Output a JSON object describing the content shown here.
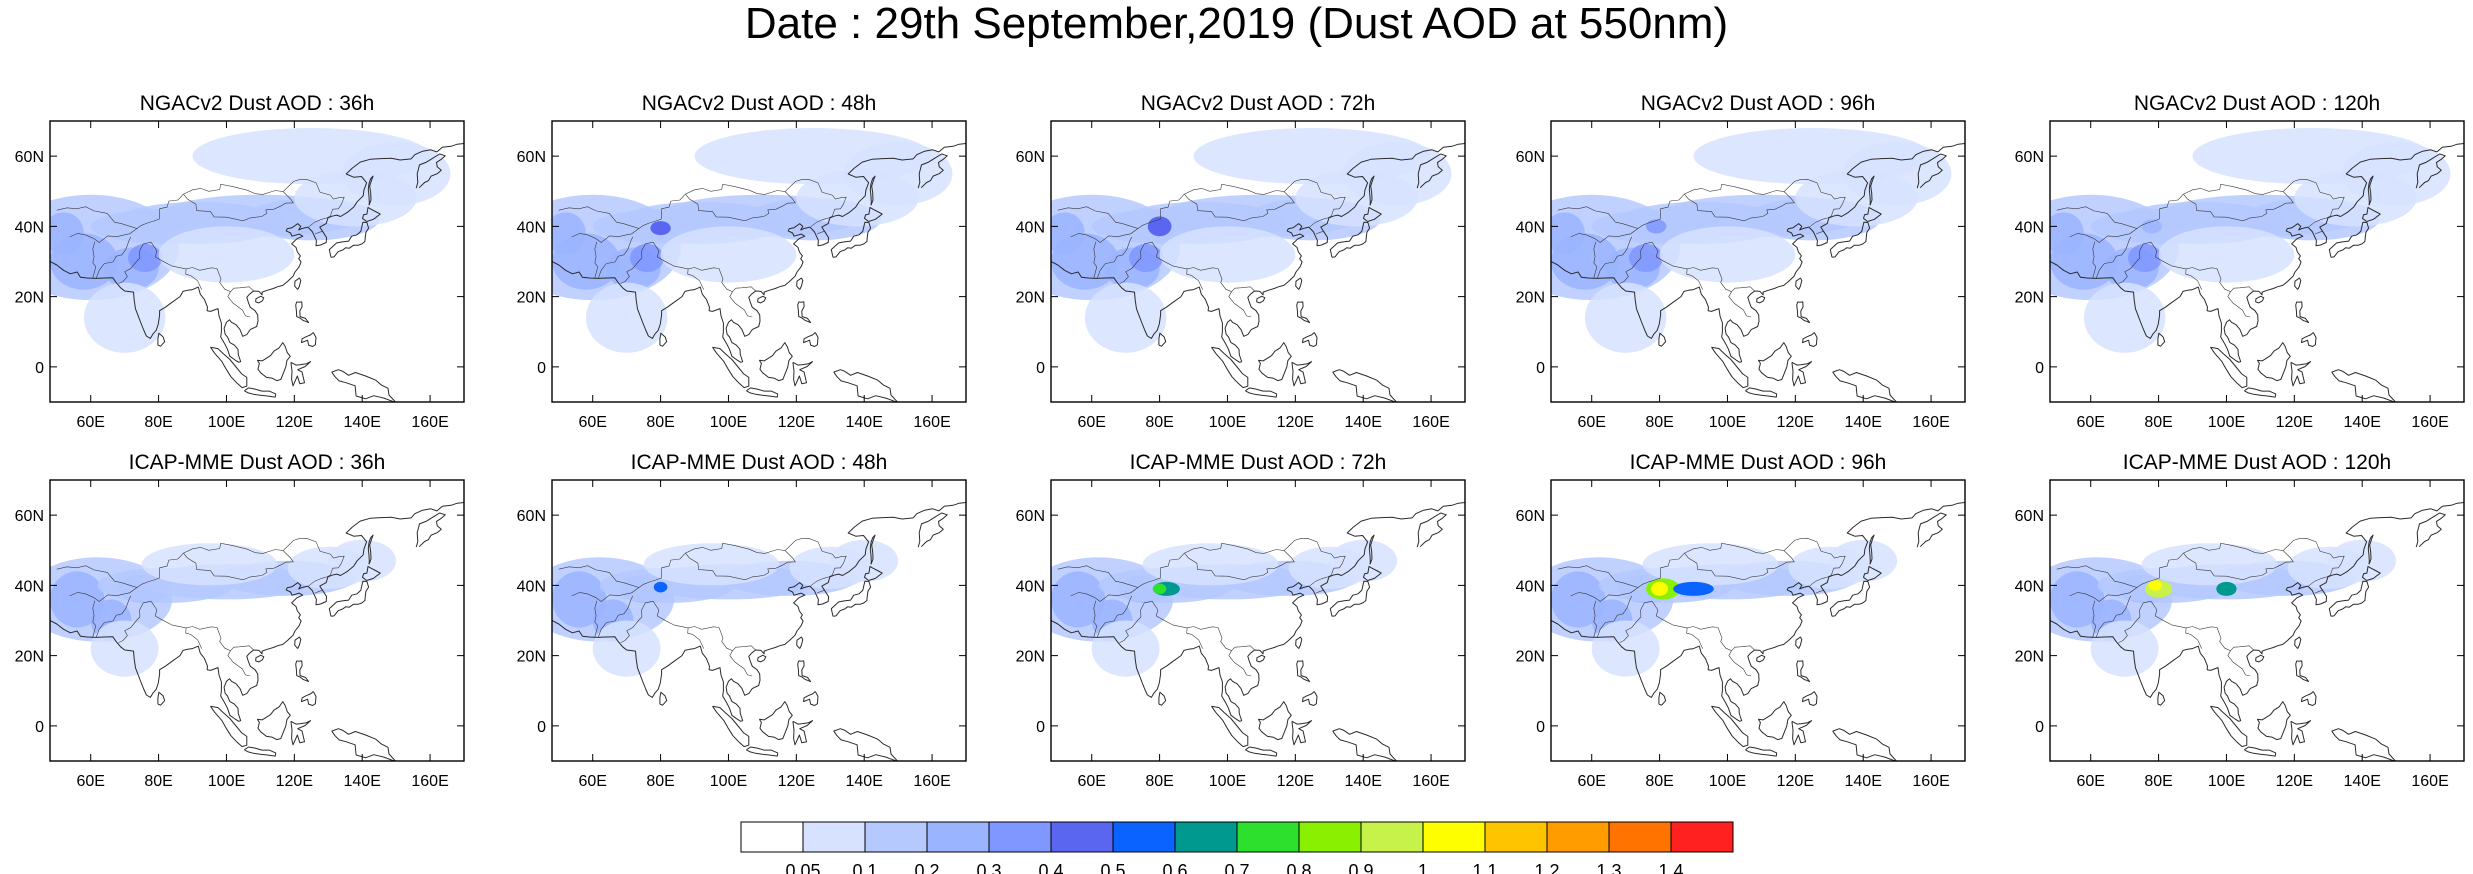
{
  "title": "Date : 29th September,2019 (Dust AOD at 550nm)",
  "axes": {
    "x_ticks": [
      "60E",
      "80E",
      "100E",
      "120E",
      "140E",
      "160E"
    ],
    "x_values": [
      60,
      80,
      100,
      120,
      140,
      160
    ],
    "y_ticks": [
      "60N",
      "40N",
      "20N",
      "0"
    ],
    "y_values": [
      60,
      40,
      20,
      0
    ],
    "lon_range": [
      48,
      170
    ],
    "lat_range": [
      -10,
      70
    ]
  },
  "panels": [
    {
      "id": "ngac-36",
      "title": "NGACv2 Dust AOD : 36h",
      "model": "ngac",
      "lead": 36
    },
    {
      "id": "ngac-48",
      "title": "NGACv2 Dust AOD : 48h",
      "model": "ngac",
      "lead": 48
    },
    {
      "id": "ngac-72",
      "title": "NGACv2 Dust AOD : 72h",
      "model": "ngac",
      "lead": 72
    },
    {
      "id": "ngac-96",
      "title": "NGACv2 Dust AOD : 96h",
      "model": "ngac",
      "lead": 96
    },
    {
      "id": "ngac-120",
      "title": "NGACv2 Dust AOD : 120h",
      "model": "ngac",
      "lead": 120
    },
    {
      "id": "icap-36",
      "title": "ICAP-MME Dust AOD : 36h",
      "model": "icap",
      "lead": 36
    },
    {
      "id": "icap-48",
      "title": "ICAP-MME Dust AOD : 48h",
      "model": "icap",
      "lead": 48
    },
    {
      "id": "icap-72",
      "title": "ICAP-MME Dust AOD : 72h",
      "model": "icap",
      "lead": 72
    },
    {
      "id": "icap-96",
      "title": "ICAP-MME Dust AOD : 96h",
      "model": "icap",
      "lead": 96
    },
    {
      "id": "icap-120",
      "title": "ICAP-MME Dust AOD : 120h",
      "model": "icap",
      "lead": 120
    }
  ],
  "colorbar": {
    "labels": [
      "0.05",
      "0.1",
      "0.2",
      "0.3",
      "0.4",
      "0.5",
      "0.6",
      "0.7",
      "0.8",
      "0.9",
      "1",
      "1.1",
      "1.2",
      "1.3",
      "1.4"
    ],
    "colors": [
      "#ffffff",
      "#d6e2ff",
      "#b5c9ff",
      "#9ab4ff",
      "#7f97ff",
      "#5a66f0",
      "#0a63ff",
      "#00998f",
      "#2ee02e",
      "#88f000",
      "#c6f24a",
      "#fffe00",
      "#ffc400",
      "#ff9c00",
      "#ff7400",
      "#ff2020"
    ]
  }
}
